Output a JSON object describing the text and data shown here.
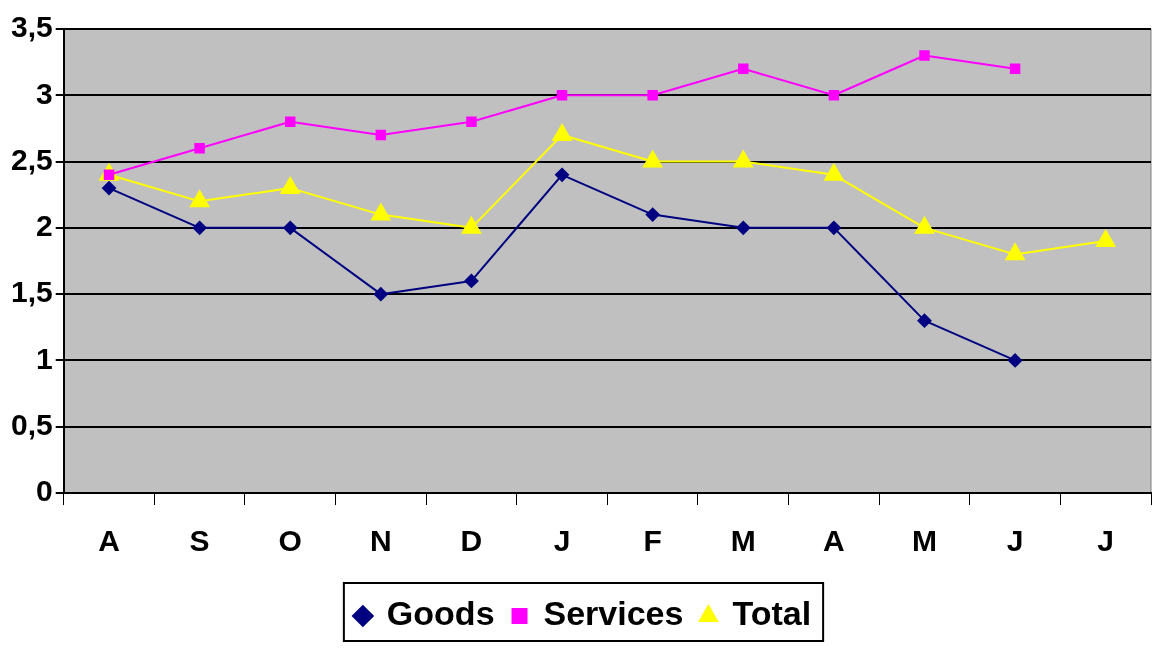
{
  "chart_data": {
    "type": "line",
    "categories": [
      "A",
      "S",
      "O",
      "N",
      "D",
      "J",
      "F",
      "M",
      "A",
      "M",
      "J",
      "J"
    ],
    "series": [
      {
        "name": "Goods",
        "color": "#000080",
        "marker": "diamond",
        "values": [
          2.3,
          2.0,
          2.0,
          1.5,
          1.6,
          2.4,
          2.1,
          2.0,
          2.0,
          1.3,
          1.0,
          null
        ]
      },
      {
        "name": "Services",
        "color": "#ff00ff",
        "marker": "square",
        "values": [
          2.4,
          2.6,
          2.8,
          2.7,
          2.8,
          3.0,
          3.0,
          3.2,
          3.0,
          3.3,
          3.2,
          null
        ]
      },
      {
        "name": "Total",
        "color": "#ffff00",
        "marker": "triangle",
        "values": [
          2.4,
          2.2,
          2.3,
          2.1,
          2.0,
          2.7,
          2.5,
          2.5,
          2.4,
          2.0,
          1.8,
          1.9
        ]
      }
    ],
    "ylim": [
      0,
      3.5
    ],
    "yticks": [
      0,
      {
        "value": 0.5,
        "label": "0,5"
      },
      1,
      {
        "value": 1.5,
        "label": "1,5"
      },
      2,
      {
        "value": 2.5,
        "label": "2,5"
      },
      3,
      {
        "value": 3.5,
        "label": "3,5"
      }
    ],
    "grid": "y",
    "legend": "bottom",
    "line_style": "solid"
  }
}
